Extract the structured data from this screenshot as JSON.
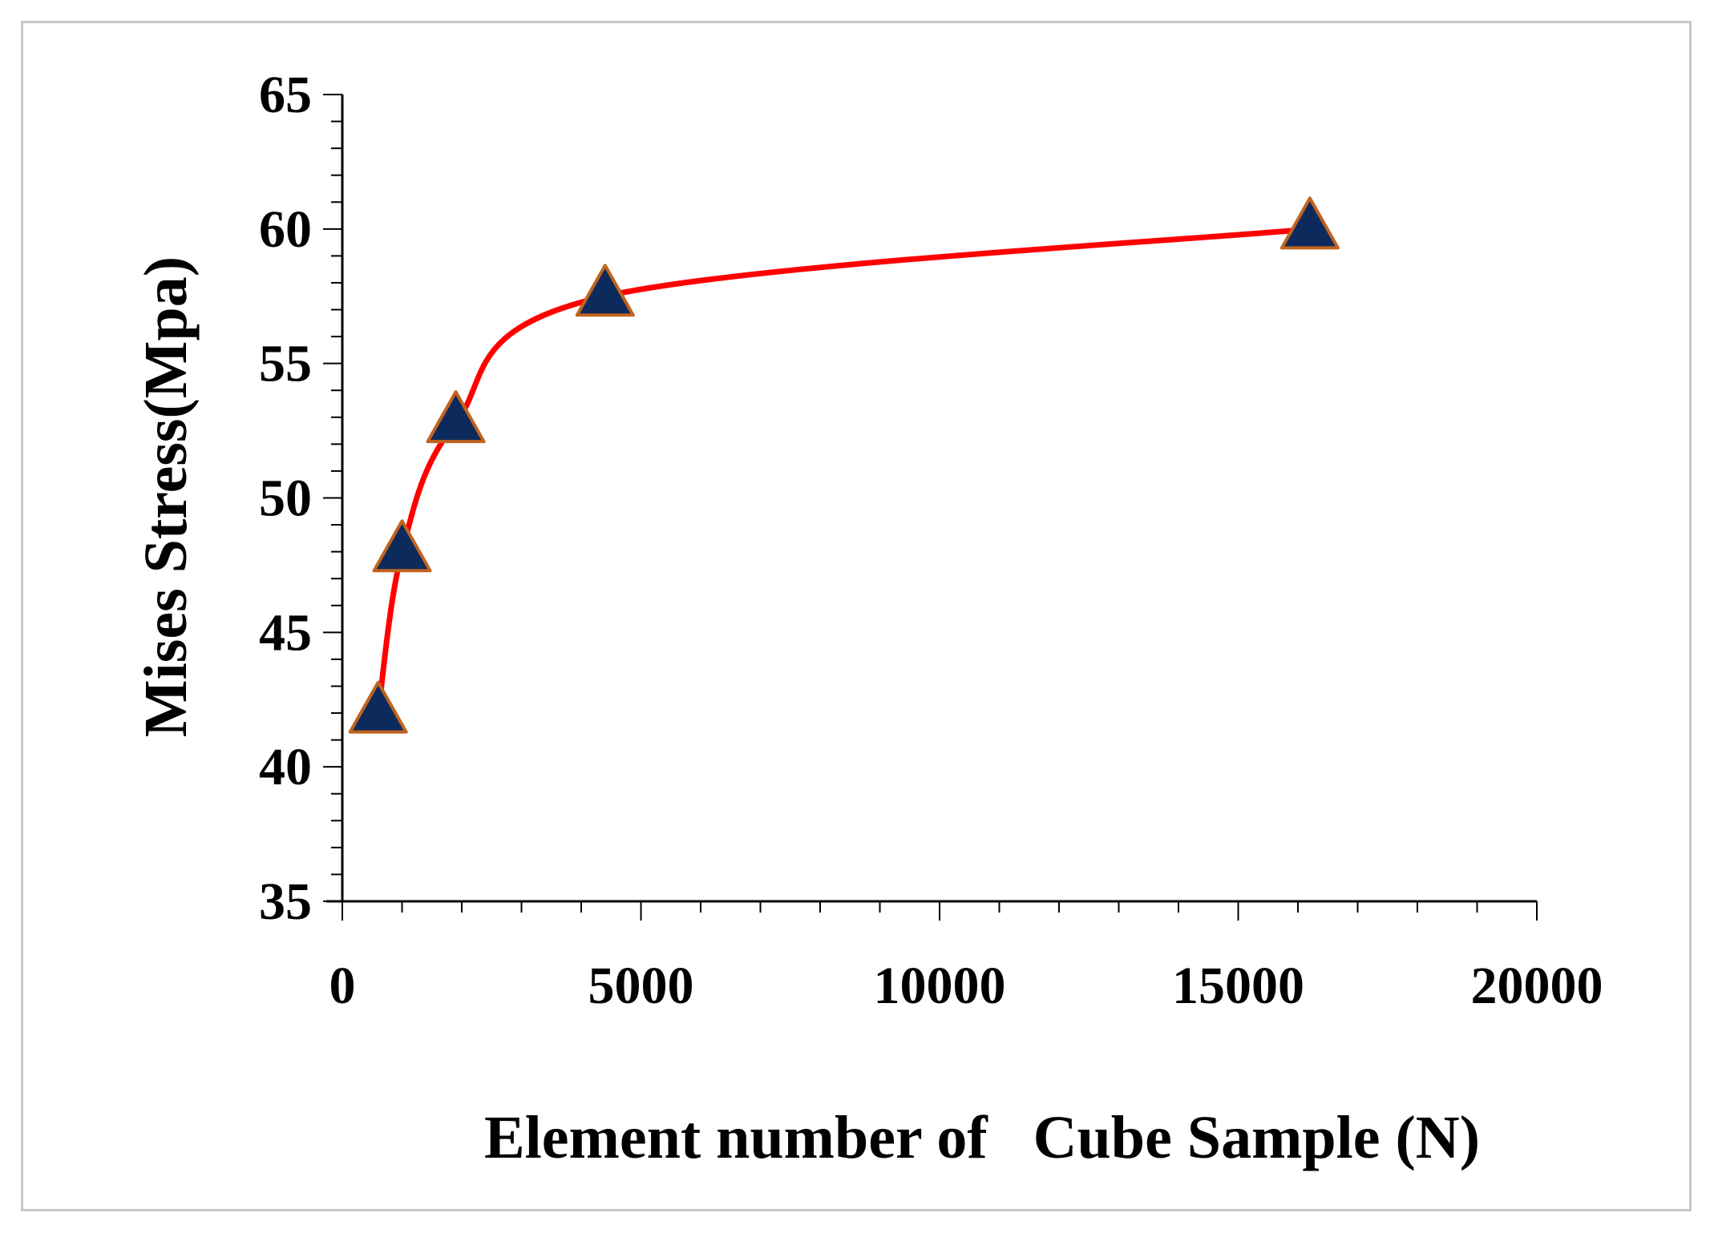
{
  "chart_data": {
    "type": "line",
    "xlabel": "Element number of   Cube Sample (N)",
    "ylabel": "Mises Stress(Mpa)",
    "xlim": [
      0,
      20000
    ],
    "ylim": [
      35,
      65
    ],
    "x_ticks": [
      0,
      5000,
      10000,
      15000,
      20000
    ],
    "y_ticks": [
      35,
      40,
      45,
      50,
      55,
      60,
      65
    ],
    "x_tick_labels": [
      "0",
      "5000",
      "10000",
      "15000",
      "20000"
    ],
    "y_tick_labels": [
      "35",
      "40",
      "45",
      "50",
      "55",
      "60",
      "65"
    ],
    "grid": false,
    "legend": "none",
    "series": [
      {
        "x": [
          600,
          1000,
          1900,
          4400,
          16200
        ],
        "y": [
          42,
          48,
          52.8,
          57.5,
          60
        ],
        "line_color": "#ff0000",
        "marker": "triangle",
        "marker_color": "#0d2a5c",
        "marker_edge_color": "#c0641e"
      }
    ]
  }
}
